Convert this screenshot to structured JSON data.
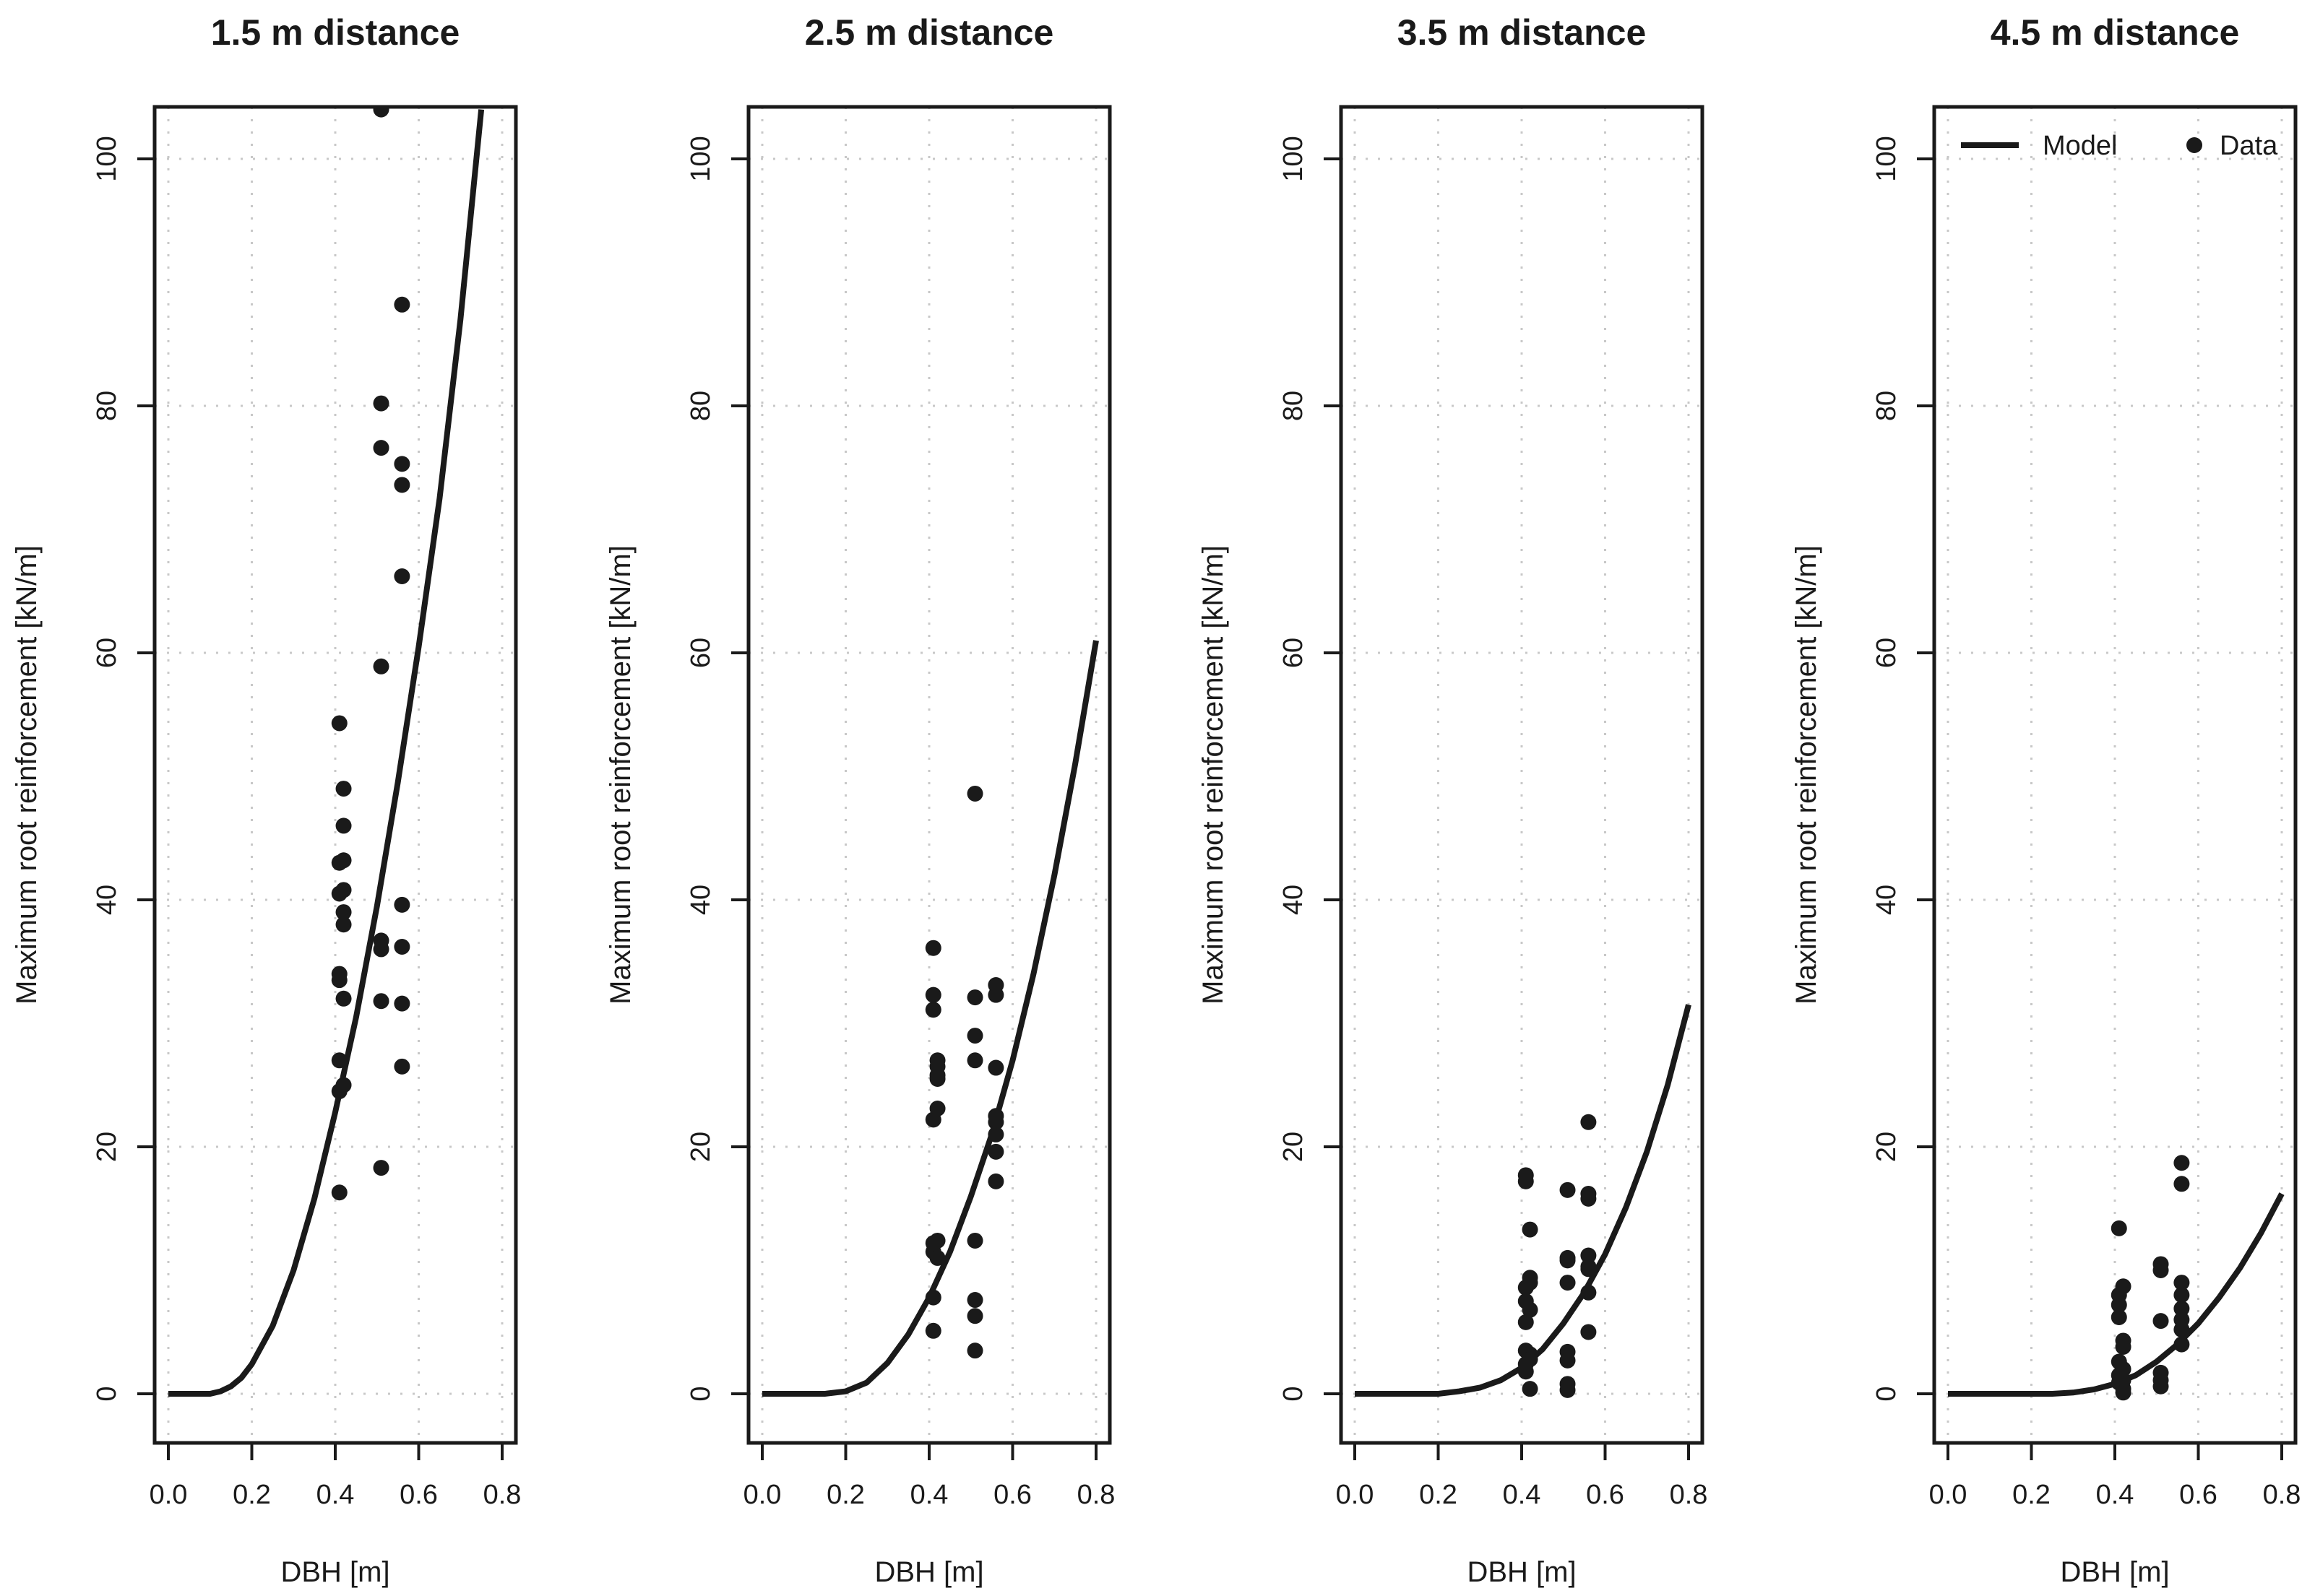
{
  "chart_data": [
    {
      "type": "scatter",
      "title": "1.5 m distance",
      "xlabel": "DBH [m]",
      "ylabel": "Maximum root reinforcement [kN/m]",
      "xlim": [
        0.0,
        0.8
      ],
      "ylim": [
        0,
        104
      ],
      "xticks": [
        "0.0",
        "0.2",
        "0.4",
        "0.6",
        "0.8"
      ],
      "yticks": [
        "0",
        "20",
        "40",
        "60",
        "80",
        "100"
      ],
      "grid": true,
      "series": [
        {
          "name": "Model",
          "kind": "line",
          "x": [
            0.0,
            0.05,
            0.1,
            0.125,
            0.15,
            0.175,
            0.2,
            0.25,
            0.3,
            0.35,
            0.4,
            0.45,
            0.5,
            0.55,
            0.6,
            0.65,
            0.7,
            0.75
          ],
          "y": [
            0.0,
            0.0,
            0.0,
            0.2,
            0.6,
            1.3,
            2.4,
            5.5,
            10.0,
            15.8,
            22.8,
            30.5,
            39.5,
            49.5,
            60.5,
            72.5,
            87.0,
            104.0
          ]
        },
        {
          "name": "Data",
          "kind": "points",
          "x": [
            0.41,
            0.41,
            0.41,
            0.41,
            0.41,
            0.41,
            0.41,
            0.41,
            0.42,
            0.42,
            0.42,
            0.42,
            0.42,
            0.42,
            0.42,
            0.42,
            0.51,
            0.51,
            0.51,
            0.51,
            0.51,
            0.51,
            0.51,
            0.51,
            0.56,
            0.56,
            0.56,
            0.56,
            0.56,
            0.56,
            0.56,
            0.56
          ],
          "y": [
            54.3,
            43.0,
            40.5,
            34.0,
            33.5,
            27.0,
            24.5,
            16.3,
            49.0,
            46.0,
            43.2,
            40.8,
            39.0,
            38.0,
            32.0,
            25.0,
            104.0,
            80.2,
            76.6,
            58.9,
            36.7,
            36.0,
            31.8,
            18.3,
            88.2,
            75.3,
            73.6,
            66.2,
            39.6,
            36.2,
            31.6,
            26.5
          ]
        }
      ]
    },
    {
      "type": "scatter",
      "title": "2.5 m distance",
      "xlabel": "DBH [m]",
      "ylabel": "Maximum root reinforcement [kN/m]",
      "xlim": [
        0.0,
        0.8
      ],
      "ylim": [
        0,
        104
      ],
      "xticks": [
        "0.0",
        "0.2",
        "0.4",
        "0.6",
        "0.8"
      ],
      "yticks": [
        "0",
        "20",
        "40",
        "60",
        "80",
        "100"
      ],
      "grid": true,
      "series": [
        {
          "name": "Model",
          "kind": "line",
          "x": [
            0.0,
            0.1,
            0.15,
            0.2,
            0.25,
            0.3,
            0.35,
            0.4,
            0.45,
            0.5,
            0.55,
            0.6,
            0.65,
            0.7,
            0.75,
            0.8
          ],
          "y": [
            0.0,
            0.0,
            0.0,
            0.2,
            0.9,
            2.5,
            4.8,
            7.8,
            11.5,
            16.0,
            21.0,
            27.0,
            34.0,
            42.0,
            51.0,
            61.0
          ]
        },
        {
          "name": "Data",
          "kind": "points",
          "x": [
            0.41,
            0.41,
            0.41,
            0.41,
            0.41,
            0.41,
            0.41,
            0.41,
            0.42,
            0.42,
            0.42,
            0.42,
            0.42,
            0.42,
            0.42,
            0.51,
            0.51,
            0.51,
            0.51,
            0.51,
            0.51,
            0.51,
            0.51,
            0.56,
            0.56,
            0.56,
            0.56,
            0.56,
            0.56,
            0.56,
            0.56
          ],
          "y": [
            36.1,
            32.3,
            31.1,
            22.2,
            12.2,
            11.5,
            7.8,
            5.1,
            27.0,
            26.5,
            25.8,
            23.1,
            12.4,
            11.0,
            25.5,
            48.6,
            32.1,
            29.0,
            27.0,
            12.4,
            7.6,
            6.3,
            3.5,
            33.1,
            32.3,
            26.4,
            22.5,
            22.0,
            21.0,
            19.6,
            17.2
          ]
        }
      ]
    },
    {
      "type": "scatter",
      "title": "3.5 m distance",
      "xlabel": "DBH [m]",
      "ylabel": "Maximum root reinforcement [kN/m]",
      "xlim": [
        0.0,
        0.8
      ],
      "ylim": [
        0,
        104
      ],
      "xticks": [
        "0.0",
        "0.2",
        "0.4",
        "0.6",
        "0.8"
      ],
      "yticks": [
        "0",
        "20",
        "40",
        "60",
        "80",
        "100"
      ],
      "grid": true,
      "series": [
        {
          "name": "Model",
          "kind": "line",
          "x": [
            0.0,
            0.15,
            0.2,
            0.25,
            0.3,
            0.35,
            0.4,
            0.45,
            0.5,
            0.55,
            0.6,
            0.65,
            0.7,
            0.75,
            0.8
          ],
          "y": [
            0.0,
            0.0,
            0.0,
            0.2,
            0.5,
            1.1,
            2.1,
            3.6,
            5.7,
            8.2,
            11.3,
            15.1,
            19.6,
            25.0,
            31.5
          ]
        },
        {
          "name": "Data",
          "kind": "points",
          "x": [
            0.41,
            0.41,
            0.41,
            0.41,
            0.41,
            0.41,
            0.41,
            0.41,
            0.42,
            0.42,
            0.42,
            0.42,
            0.42,
            0.42,
            0.42,
            0.51,
            0.51,
            0.51,
            0.51,
            0.51,
            0.51,
            0.51,
            0.51,
            0.56,
            0.56,
            0.56,
            0.56,
            0.56,
            0.56,
            0.56,
            0.56
          ],
          "y": [
            17.7,
            17.2,
            8.6,
            7.5,
            5.8,
            3.5,
            2.4,
            1.8,
            13.3,
            9.4,
            9.0,
            6.8,
            3.2,
            2.8,
            0.4,
            16.5,
            11.0,
            10.8,
            9.0,
            3.4,
            2.7,
            0.8,
            0.3,
            22.0,
            16.2,
            15.8,
            11.2,
            10.3,
            10.1,
            8.2,
            5.0
          ]
        }
      ]
    },
    {
      "type": "scatter",
      "title": "4.5 m distance",
      "xlabel": "DBH [m]",
      "ylabel": "Maximum root reinforcement [kN/m]",
      "xlim": [
        0.0,
        0.8
      ],
      "ylim": [
        0,
        104
      ],
      "xticks": [
        "0.0",
        "0.2",
        "0.4",
        "0.6",
        "0.8"
      ],
      "yticks": [
        "0",
        "20",
        "40",
        "60",
        "80",
        "100"
      ],
      "grid": true,
      "legend": {
        "position": "top",
        "entries": [
          "Model",
          "Data"
        ]
      },
      "series": [
        {
          "name": "Model",
          "kind": "line",
          "x": [
            0.0,
            0.25,
            0.3,
            0.35,
            0.4,
            0.45,
            0.5,
            0.55,
            0.6,
            0.65,
            0.7,
            0.75,
            0.8
          ],
          "y": [
            0.0,
            0.0,
            0.1,
            0.35,
            0.8,
            1.5,
            2.6,
            4.0,
            5.7,
            7.8,
            10.2,
            13.0,
            16.2
          ]
        },
        {
          "name": "Data",
          "kind": "points",
          "x": [
            0.41,
            0.41,
            0.41,
            0.41,
            0.41,
            0.41,
            0.41,
            0.42,
            0.42,
            0.42,
            0.42,
            0.42,
            0.42,
            0.42,
            0.51,
            0.51,
            0.51,
            0.51,
            0.51,
            0.51,
            0.56,
            0.56,
            0.56,
            0.56,
            0.56,
            0.56,
            0.56,
            0.56
          ],
          "y": [
            13.4,
            8.0,
            7.2,
            6.2,
            2.6,
            1.5,
            0.9,
            8.7,
            4.3,
            3.8,
            2.0,
            1.1,
            0.4,
            0.1,
            10.5,
            10.0,
            5.9,
            1.7,
            1.1,
            0.6,
            18.7,
            17.0,
            9.0,
            8.0,
            6.9,
            6.0,
            5.2,
            4.0
          ]
        }
      ]
    }
  ]
}
